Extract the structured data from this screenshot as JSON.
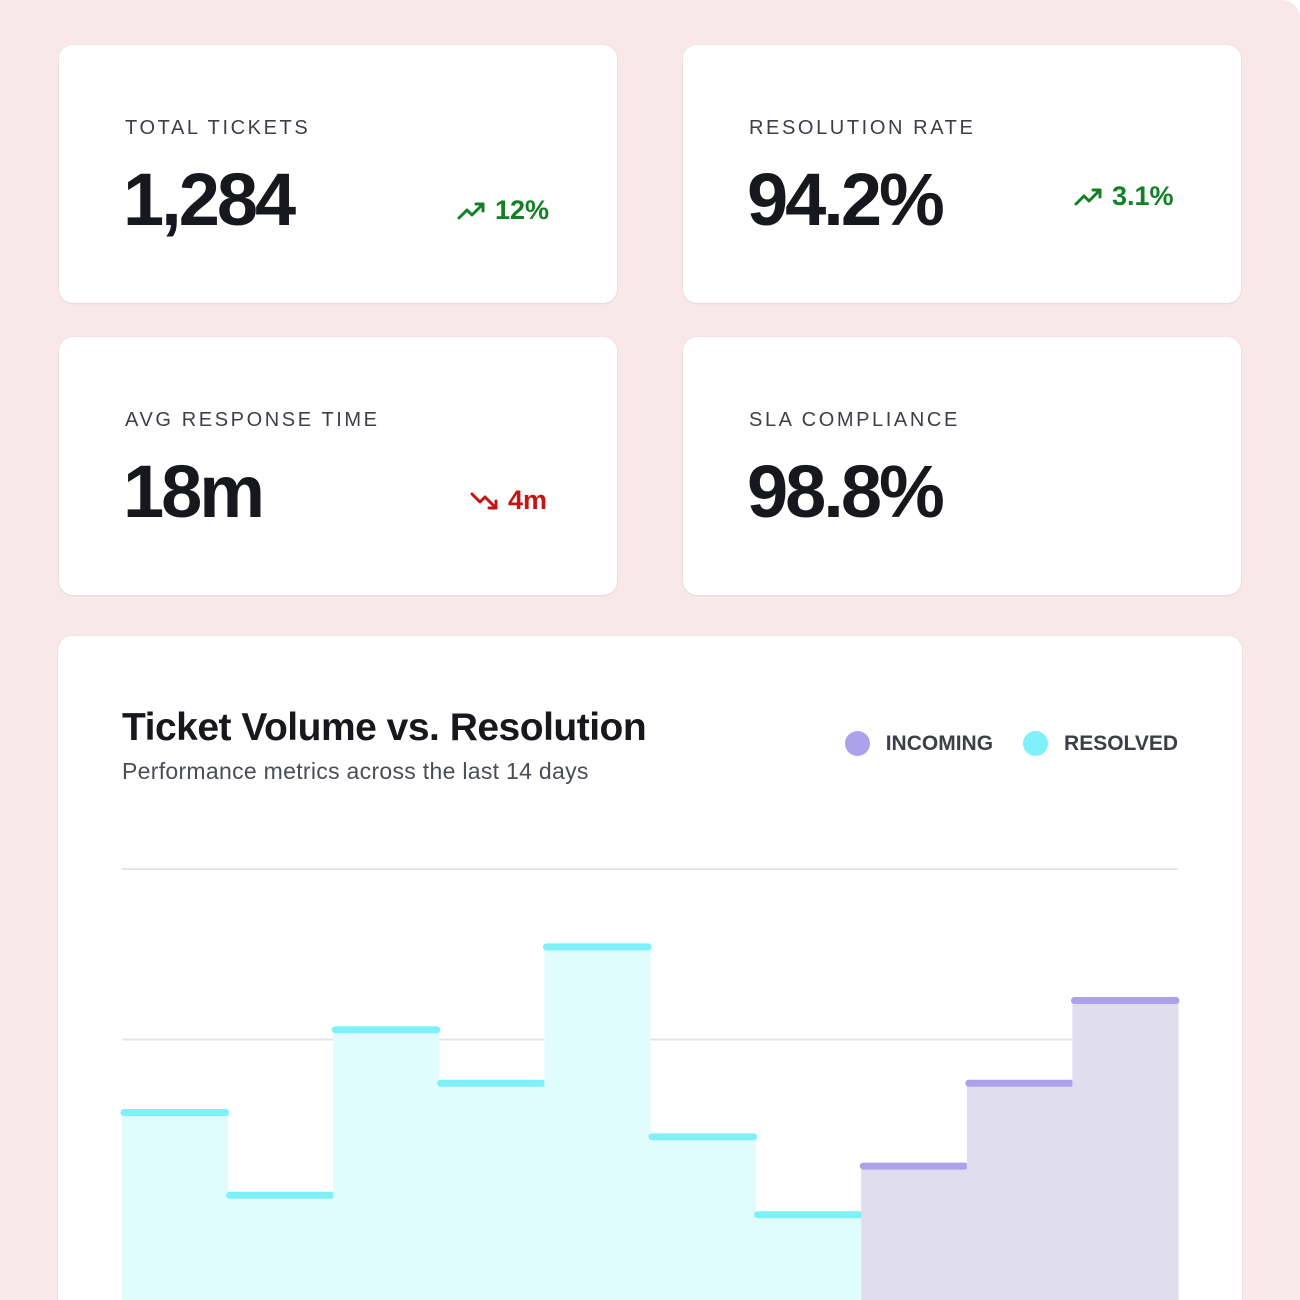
{
  "kpis": [
    {
      "label": "TOTAL TICKETS",
      "value": "1,284",
      "delta": "12%",
      "trend": "up",
      "trend_icon": "trending-up-icon"
    },
    {
      "label": "RESOLUTION RATE",
      "value": "94.2%",
      "delta": "3.1%",
      "trend": "up",
      "trend_icon": "trending-up-icon"
    },
    {
      "label": "AVG RESPONSE TIME",
      "value": "18m",
      "delta": "4m",
      "trend": "down",
      "trend_icon": "trending-down-icon"
    },
    {
      "label": "SLA COMPLIANCE",
      "value": "98.8%"
    }
  ],
  "colors": {
    "background": "#f8e8ea",
    "up": "#128024",
    "down": "#c81313",
    "incoming": "#aca2ec",
    "incoming_fill": "#e0ddee",
    "resolved": "#7ef0f8",
    "resolved_fill": "#e0fcfd"
  },
  "chart": {
    "title": "Ticket Volume vs. Resolution",
    "subtitle": "Performance metrics across the last 14 days",
    "legend": [
      {
        "label": "INCOMING",
        "color": "#aca2ec"
      },
      {
        "label": "RESOLVED",
        "color": "#7ef0f8"
      }
    ]
  },
  "chart_data": {
    "type": "area",
    "step": true,
    "title": "Ticket Volume vs. Resolution",
    "subtitle": "Performance metrics across the last 14 days",
    "ylim": [
      0,
      100
    ],
    "grid": true,
    "legend_position": "top-right",
    "series": [
      {
        "name": "RESOLVED",
        "values": [
          50,
          33,
          67,
          56,
          84,
          45,
          29
        ]
      },
      {
        "name": "INCOMING",
        "values": [
          39,
          56,
          73
        ]
      }
    ]
  }
}
